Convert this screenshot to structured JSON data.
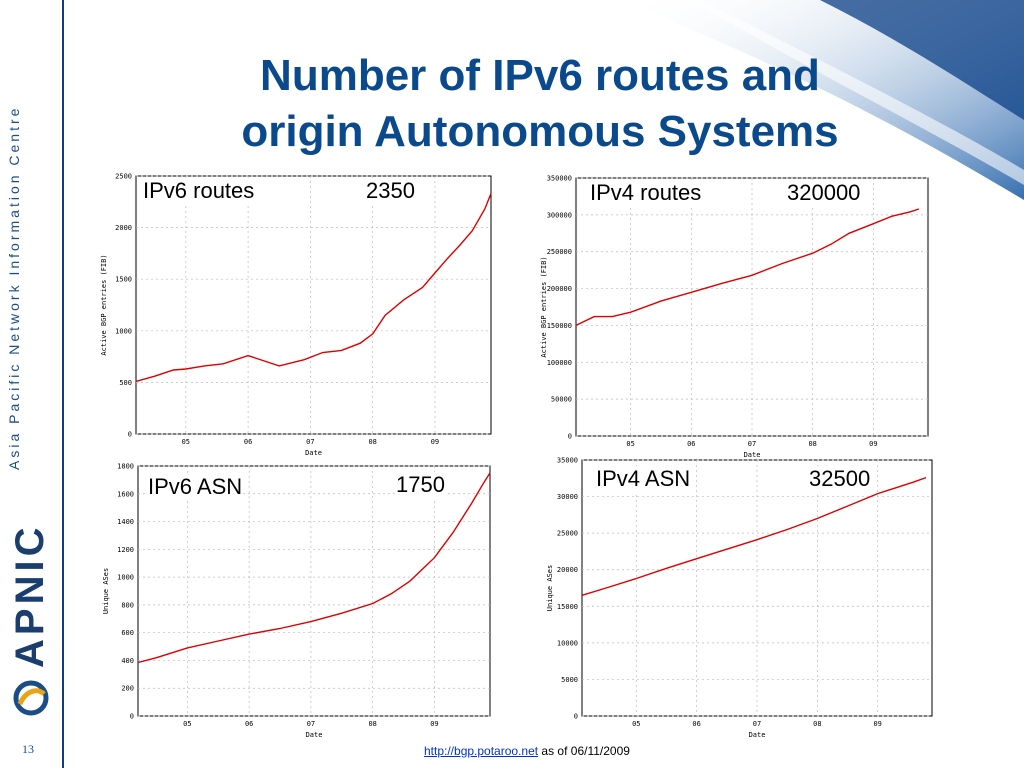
{
  "slide": {
    "title_line1": "Number of IPv6 routes and",
    "title_line2": "origin Autonomous Systems",
    "sidebar_text": "Asia Pacific Network Information Centre",
    "brand": "APNIC",
    "page_number": "13",
    "footer_link": "http://bgp.potaroo.net",
    "footer_text": " as of 06/11/2009",
    "accent_color": "#0a4a8c",
    "line_color": "#dd0000"
  },
  "overlays": {
    "ipv6_routes_label": "IPv6 routes",
    "ipv6_routes_value": "2350",
    "ipv4_routes_label": "IPv4 routes",
    "ipv4_routes_value": "320000",
    "ipv6_asn_label": "IPv6 ASN",
    "ipv6_asn_value": "1750",
    "ipv4_asn_label": "IPv4 ASN",
    "ipv4_asn_value": "32500"
  },
  "chart_data": [
    {
      "type": "line",
      "xlabel": "Date",
      "ylabel": "Active BGP entries (FIB)",
      "xlim": [
        2004.2,
        2009.9
      ],
      "ylim": [
        0,
        2500
      ],
      "yticks": [
        0,
        500,
        1000,
        1500,
        2000,
        2500
      ],
      "xticks": [
        {
          "v": 2005,
          "label": "05"
        },
        {
          "v": 2006,
          "label": "06"
        },
        {
          "v": 2007,
          "label": "07"
        },
        {
          "v": 2008,
          "label": "08"
        },
        {
          "v": 2009,
          "label": "09"
        }
      ],
      "grid": true,
      "series": [
        {
          "x": [
            2004.2,
            2004.5,
            2004.8,
            2005.0,
            2005.3,
            2005.6,
            2006.0,
            2006.5,
            2006.9,
            2007.2,
            2007.5,
            2007.8,
            2008.0,
            2008.2,
            2008.5,
            2008.8,
            2009.0,
            2009.2,
            2009.4,
            2009.6,
            2009.8,
            2009.9
          ],
          "y": [
            510,
            560,
            620,
            630,
            660,
            680,
            760,
            660,
            720,
            790,
            810,
            880,
            970,
            1150,
            1300,
            1420,
            1560,
            1700,
            1830,
            1970,
            2180,
            2330
          ]
        }
      ]
    },
    {
      "type": "line",
      "xlabel": "Date",
      "ylabel": "Active BGP entries (FIB)",
      "xlim": [
        2004.1,
        2009.9
      ],
      "ylim": [
        0,
        350000
      ],
      "yticks": [
        0,
        50000,
        100000,
        150000,
        200000,
        250000,
        300000,
        350000
      ],
      "xticks": [
        {
          "v": 2005,
          "label": "05"
        },
        {
          "v": 2006,
          "label": "06"
        },
        {
          "v": 2007,
          "label": "07"
        },
        {
          "v": 2008,
          "label": "08"
        },
        {
          "v": 2009,
          "label": "09"
        }
      ],
      "grid": true,
      "series": [
        {
          "x": [
            2004.1,
            2004.4,
            2004.7,
            2005.0,
            2005.5,
            2006.0,
            2006.5,
            2007.0,
            2007.5,
            2008.0,
            2008.3,
            2008.6,
            2009.0,
            2009.3,
            2009.6,
            2009.75
          ],
          "y": [
            150000,
            162000,
            162000,
            168000,
            183000,
            195000,
            207000,
            218000,
            234000,
            248000,
            260000,
            275000,
            288000,
            298000,
            304000,
            308000
          ]
        }
      ]
    },
    {
      "type": "line",
      "xlabel": "Date",
      "ylabel": "Unique ASes",
      "xlim": [
        2004.2,
        2009.9
      ],
      "ylim": [
        0,
        1800
      ],
      "yticks": [
        0,
        200,
        400,
        600,
        800,
        1000,
        1200,
        1400,
        1600,
        1800
      ],
      "xticks": [
        {
          "v": 2005,
          "label": "05"
        },
        {
          "v": 2006,
          "label": "06"
        },
        {
          "v": 2007,
          "label": "07"
        },
        {
          "v": 2008,
          "label": "08"
        },
        {
          "v": 2009,
          "label": "09"
        }
      ],
      "grid": true,
      "series": [
        {
          "x": [
            2004.2,
            2004.5,
            2005.0,
            2005.5,
            2006.0,
            2006.5,
            2007.0,
            2007.5,
            2008.0,
            2008.3,
            2008.6,
            2009.0,
            2009.3,
            2009.6,
            2009.8,
            2009.9
          ],
          "y": [
            385,
            420,
            490,
            540,
            590,
            630,
            680,
            740,
            810,
            880,
            970,
            1140,
            1320,
            1530,
            1680,
            1750
          ]
        }
      ]
    },
    {
      "type": "line",
      "xlabel": "Date",
      "ylabel": "Unique ASes",
      "xlim": [
        2004.1,
        2009.9
      ],
      "ylim": [
        0,
        35000
      ],
      "yticks": [
        0,
        5000,
        10000,
        15000,
        20000,
        25000,
        30000,
        35000
      ],
      "xticks": [
        {
          "v": 2005,
          "label": "05"
        },
        {
          "v": 2006,
          "label": "06"
        },
        {
          "v": 2007,
          "label": "07"
        },
        {
          "v": 2008,
          "label": "08"
        },
        {
          "v": 2009,
          "label": "09"
        }
      ],
      "grid": true,
      "series": [
        {
          "x": [
            2004.1,
            2004.5,
            2005.0,
            2005.5,
            2006.0,
            2006.5,
            2007.0,
            2007.5,
            2008.0,
            2008.5,
            2009.0,
            2009.3,
            2009.6,
            2009.8
          ],
          "y": [
            16500,
            17500,
            18800,
            20200,
            21500,
            22800,
            24100,
            25500,
            27000,
            28700,
            30400,
            31200,
            32000,
            32600
          ]
        }
      ]
    }
  ]
}
